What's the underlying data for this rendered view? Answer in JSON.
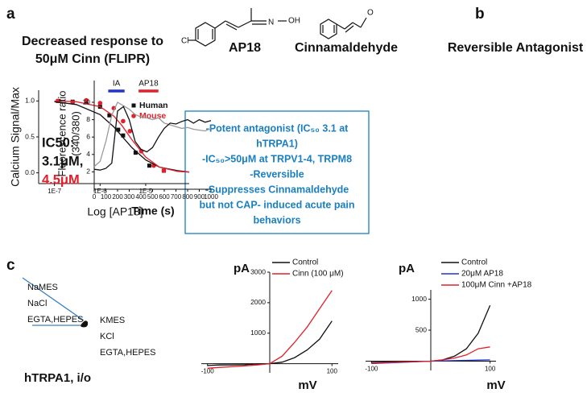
{
  "panels": [
    "a",
    "b",
    "c"
  ],
  "structures": [
    {
      "name": "AP18",
      "atoms": [
        "Cl",
        "N",
        "OH"
      ]
    },
    {
      "name": "Cinnamaldehyde",
      "atoms": [
        "O"
      ]
    }
  ],
  "summary": [
    "-Potent antagonist (IC₅₀ 3.1 at",
    "hTRPA1)",
    "-IC₅₀>50μM at TRPV1-4, TRPM8",
    "-Reversible",
    "-Suppresses Cinnamaldehyde",
    "but not CAP- induced acute pain",
    "behaviors"
  ],
  "diagram": {
    "outside": [
      "NaMES",
      "NaCl",
      "EGTA,HEPES"
    ],
    "inside": [
      "KMES",
      "KCl",
      "EGTA,HEPES"
    ],
    "label": "hTRPA1, i/o"
  },
  "chart_data": [
    {
      "type": "scatter",
      "title": [
        "Decreased response to",
        "50μM Cinn (FLIPR)"
      ],
      "x_label": "Log [AP18]",
      "y_label": "Calcium Signal/Max",
      "log_x": true,
      "xlim": [
        4.5e-08,
        9e-05
      ],
      "xticks": [
        {
          "value": 1e-07,
          "label": "1E-7"
        },
        {
          "value": 1e-06,
          "label": "1E-6"
        },
        {
          "value": 1e-05,
          "label": "1E-5"
        }
      ],
      "ylim": [
        -0.15,
        1.15
      ],
      "yticks": [
        {
          "value": 0,
          "label": "0.0"
        },
        0.5,
        {
          "value": 1,
          "label": "1.0"
        }
      ],
      "series": [
        {
          "name": "Human",
          "color": "#111111",
          "marker": "square",
          "x": [
            1.2e-07,
            2.5e-07,
            5e-07,
            1e-06,
            1.6e-06,
            2.5e-06,
            3.2e-06,
            6e-06,
            1.2e-05,
            2.5e-05
          ],
          "values": [
            1.0,
            0.99,
            0.98,
            0.92,
            0.8,
            0.6,
            0.52,
            0.28,
            0.1,
            0.03
          ]
        },
        {
          "name": "Mouse",
          "color": "#e0202a",
          "marker": "circle",
          "x": [
            1.2e-07,
            2.5e-07,
            5e-07,
            1e-06,
            2e-06,
            3.2e-06,
            4.5e-06,
            8e-06,
            1.5e-05,
            2.5e-05
          ],
          "values": [
            1.0,
            0.98,
            1.01,
            0.97,
            0.9,
            0.72,
            0.58,
            0.3,
            0.1,
            0.03
          ]
        },
        {
          "color": "#111111",
          "mode": "line",
          "x": [
            1e-07,
            3e-07,
            1e-06,
            2e-06,
            3e-06,
            5e-06,
            1e-05,
            2e-05,
            5e-05,
            9e-05
          ],
          "values": [
            0.99,
            0.95,
            0.81,
            0.64,
            0.51,
            0.35,
            0.18,
            0.08,
            0.03,
            0.01
          ]
        },
        {
          "color": "#e0202a",
          "mode": "line",
          "x": [
            1e-07,
            3e-07,
            1e-06,
            2e-06,
            3e-06,
            5e-06,
            1e-05,
            2e-05,
            5e-05,
            9e-05
          ],
          "values": [
            1.0,
            0.99,
            0.92,
            0.79,
            0.66,
            0.46,
            0.22,
            0.08,
            0.02,
            0.01
          ]
        }
      ],
      "annotations": [
        {
          "text": "IC50:",
          "color": "#111111"
        },
        {
          "text": "3.1μM,",
          "color": "#111111"
        },
        {
          "text": "4.5μM",
          "color": "#e0202a"
        }
      ]
    },
    {
      "type": "line",
      "title": "Reversible Antagonist",
      "x_label": "Time (s)",
      "y_label": [
        "Fluorescence ratio",
        "(340/380)"
      ],
      "x": [
        0,
        50,
        100,
        150,
        200,
        250,
        300,
        350,
        400,
        450,
        500,
        550,
        600,
        650,
        700,
        750,
        800,
        850,
        900,
        950,
        1000
      ],
      "xlim": [
        0,
        1000
      ],
      "xticks": [
        0,
        100,
        200,
        300,
        400,
        500,
        600,
        700,
        800,
        900,
        1000
      ],
      "ylim": [
        0,
        12.5
      ],
      "yticks": [
        2,
        4,
        6,
        8,
        10
      ],
      "series": [
        {
          "color": "#9a9a9a",
          "values": [
            2.6,
            3.2,
            5.5,
            8.5,
            10,
            9.6,
            9.2,
            8.6,
            8.3,
            8.2,
            8,
            8.2,
            7.6,
            7.4,
            7.2,
            7,
            7.1,
            6.9,
            6.8,
            6.7,
            7
          ]
        },
        {
          "color": "#111111",
          "values": [
            2.3,
            2.2,
            2.4,
            3,
            9,
            9.5,
            8,
            5.5,
            4.6,
            4.3,
            4.8,
            6,
            7,
            7.6,
            7.5,
            7.8,
            8,
            7.6,
            8,
            7.7,
            7.9
          ]
        }
      ],
      "annotations": [
        {
          "text": "IA",
          "color": "#2233cc",
          "x": [
            120,
            260
          ],
          "y": 11.3
        },
        {
          "text": "AP18",
          "color": "#e0202a",
          "x": [
            380,
            550
          ],
          "y": 11.3
        }
      ]
    },
    {
      "type": "line",
      "x_label": "mV",
      "y_label": "pA",
      "x": [
        -100,
        -80,
        -60,
        -40,
        -20,
        0,
        20,
        40,
        60,
        80,
        100
      ],
      "xlim": [
        -110,
        110
      ],
      "xticks": [
        -100,
        100
      ],
      "ylim": [
        -300,
        3000
      ],
      "yticks": [
        1000,
        2000,
        3000
      ],
      "series": [
        {
          "name": "Control",
          "color": "#111111",
          "values": [
            -60,
            -40,
            -40,
            -30,
            -10,
            0,
            50,
            200,
            450,
            800,
            1400
          ]
        },
        {
          "name": "Cinn (100 μM)",
          "color": "#e0202a",
          "values": [
            -150,
            -120,
            -100,
            -70,
            -40,
            0,
            250,
            700,
            1200,
            1800,
            2400
          ]
        }
      ]
    },
    {
      "type": "line",
      "x_label": "mV",
      "y_label": "pA",
      "x": [
        -100,
        -80,
        -60,
        -40,
        -20,
        0,
        20,
        40,
        60,
        80,
        100
      ],
      "xlim": [
        -110,
        110
      ],
      "xticks": [
        -100,
        100
      ],
      "ylim": [
        -150,
        1150
      ],
      "yticks": [
        500,
        1000
      ],
      "series": [
        {
          "name": "Control",
          "color": "#111111",
          "values": [
            -20,
            -15,
            -12,
            -8,
            -4,
            0,
            20,
            80,
            200,
            450,
            900
          ]
        },
        {
          "name": "20μM  AP18",
          "color": "#2233cc",
          "values": [
            -40,
            -32,
            -24,
            -16,
            -8,
            0,
            4,
            8,
            12,
            16,
            20
          ]
        },
        {
          "name": "100μM Cinn +AP18",
          "color": "#e0202a",
          "values": [
            -30,
            -24,
            -18,
            -12,
            -6,
            0,
            20,
            50,
            100,
            200,
            230
          ]
        }
      ]
    }
  ]
}
